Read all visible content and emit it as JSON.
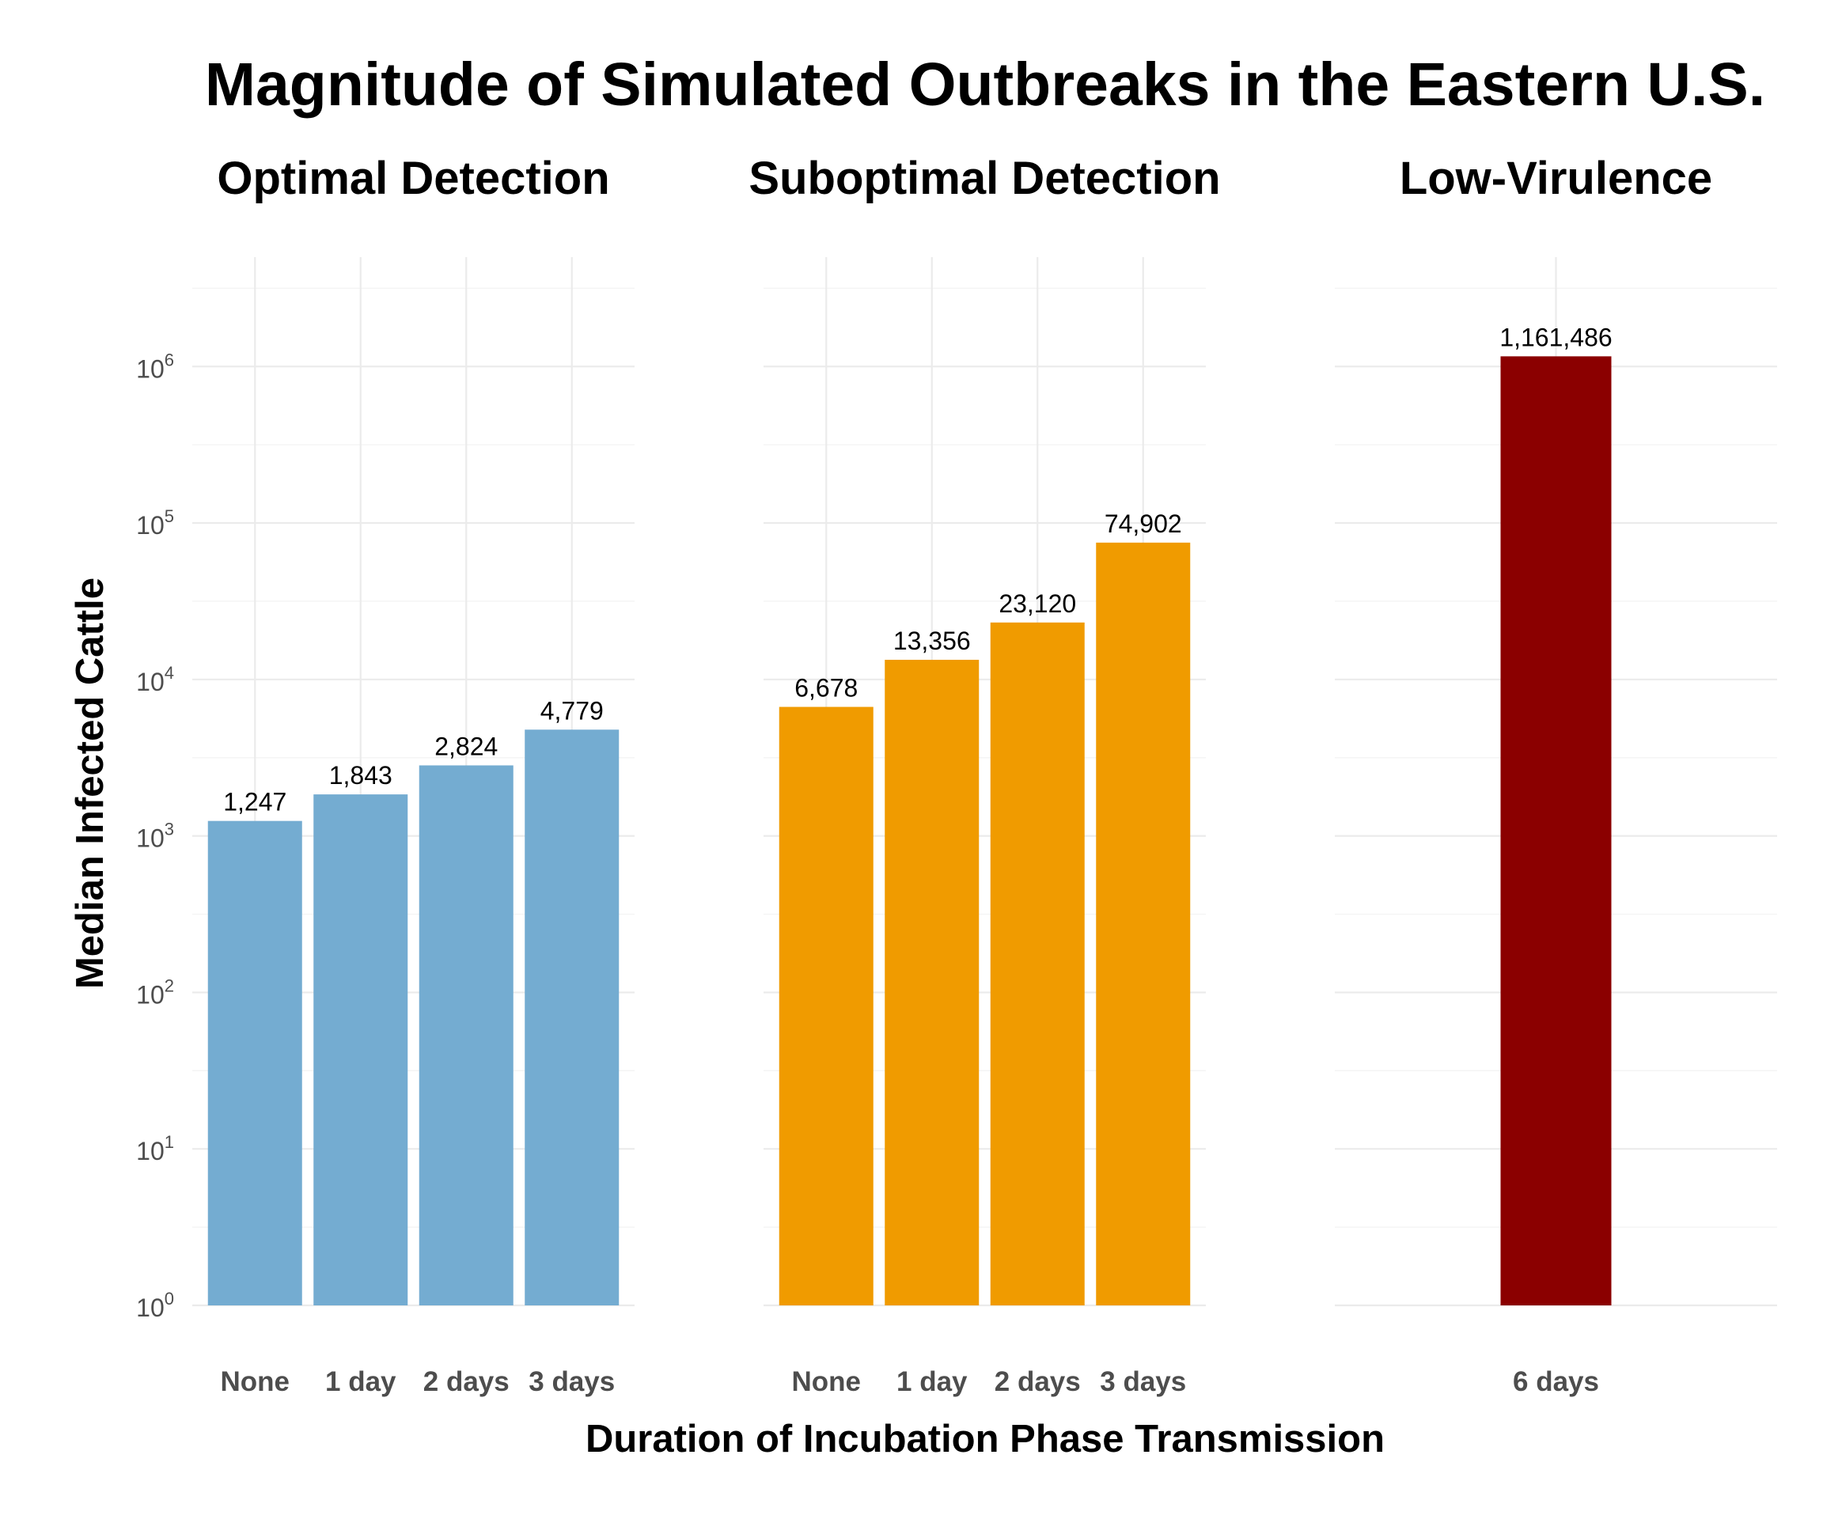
{
  "chart_data": {
    "type": "bar",
    "title": "Magnitude of Simulated Outbreaks in the Eastern U.S.",
    "xlabel": "Duration of Incubation Phase Transmission",
    "ylabel": "Median Infected Cattle",
    "yscale": "log10",
    "ylim": [
      1,
      5000000
    ],
    "yticks": [
      {
        "value": 1,
        "base": "10",
        "exp": "0"
      },
      {
        "value": 10,
        "base": "10",
        "exp": "1"
      },
      {
        "value": 100,
        "base": "10",
        "exp": "2"
      },
      {
        "value": 1000,
        "base": "10",
        "exp": "3"
      },
      {
        "value": 10000,
        "base": "10",
        "exp": "4"
      },
      {
        "value": 100000,
        "base": "10",
        "exp": "5"
      },
      {
        "value": 1000000,
        "base": "10",
        "exp": "6"
      }
    ],
    "grid": true,
    "legend": "none",
    "panels": [
      {
        "title": "Optimal Detection",
        "color": "#74acd1",
        "categories": [
          "None",
          "1 day",
          "2 days",
          "3 days"
        ],
        "values": [
          1247,
          1843,
          2824,
          4779
        ],
        "labels": [
          "1,247",
          "1,843",
          "2,824",
          "4,779"
        ]
      },
      {
        "title": "Suboptimal Detection",
        "color": "#f09b00",
        "categories": [
          "None",
          "1 day",
          "2 days",
          "3 days"
        ],
        "values": [
          6678,
          13356,
          23120,
          74902
        ],
        "labels": [
          "6,678",
          "13,356",
          "23,120",
          "74,902"
        ]
      },
      {
        "title": "Low-Virulence",
        "color": "#8b0000",
        "categories": [
          "6 days"
        ],
        "values": [
          1161486
        ],
        "labels": [
          "1,161,486"
        ]
      }
    ]
  }
}
